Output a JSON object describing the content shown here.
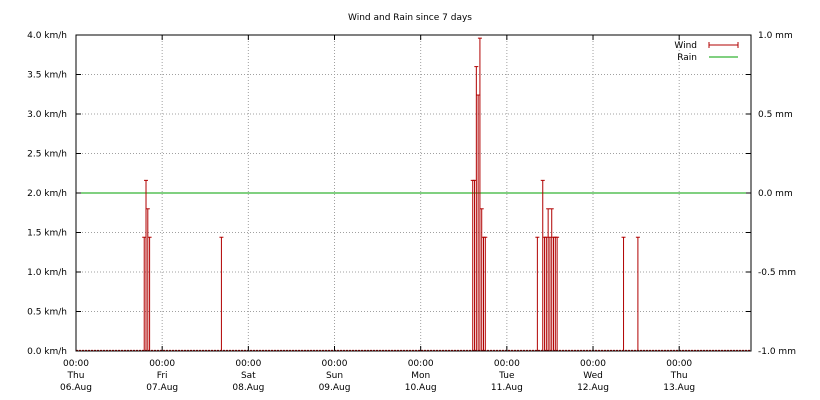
{
  "chart_data": {
    "type": "bar",
    "title": "Wind and Rain since 7 days",
    "y_left": {
      "range": [
        0.0,
        4.0
      ],
      "ticks": [
        0.0,
        0.5,
        1.0,
        1.5,
        2.0,
        2.5,
        3.0,
        3.5,
        4.0
      ],
      "tick_labels": [
        "0.0 km/h",
        "0.5 km/h",
        "1.0 km/h",
        "1.5 km/h",
        "2.0 km/h",
        "2.5 km/h",
        "3.0 km/h",
        "3.5 km/h",
        "4.0 km/h"
      ]
    },
    "y_right": {
      "range": [
        -1.0,
        1.0
      ],
      "ticks": [
        -1.0,
        -0.5,
        0.0,
        0.5,
        1.0
      ],
      "tick_labels": [
        "-1.0 mm",
        "-0.5 mm",
        "0.0 mm",
        "0.5 mm",
        "1.0 mm"
      ]
    },
    "x_axis": {
      "range": [
        "2020-08-06 00:00",
        "2020-08-13 20:00"
      ],
      "ticks": [
        {
          "value": "2020-08-06 00:00",
          "lines": [
            "00:00",
            "Thu",
            "06.Aug"
          ]
        },
        {
          "value": "2020-08-07 00:00",
          "lines": [
            "00:00",
            "Fri",
            "07.Aug"
          ]
        },
        {
          "value": "2020-08-08 00:00",
          "lines": [
            "00:00",
            "Sat",
            "08.Aug"
          ]
        },
        {
          "value": "2020-08-09 00:00",
          "lines": [
            "00:00",
            "Sun",
            "09.Aug"
          ]
        },
        {
          "value": "2020-08-10 00:00",
          "lines": [
            "00:00",
            "Mon",
            "10.Aug"
          ]
        },
        {
          "value": "2020-08-11 00:00",
          "lines": [
            "00:00",
            "Tue",
            "11.Aug"
          ]
        },
        {
          "value": "2020-08-12 00:00",
          "lines": [
            "00:00",
            "Wed",
            "12.Aug"
          ]
        },
        {
          "value": "2020-08-13 00:00",
          "lines": [
            "00:00",
            "Thu",
            "13.Aug"
          ]
        }
      ]
    },
    "grid": true,
    "legend_placement": "top-right",
    "series": [
      {
        "name": "Wind",
        "axis": "left",
        "style": "impulses",
        "color": "#b00000",
        "points": [
          {
            "x": "2020-08-06 19:00",
            "y": 1.44
          },
          {
            "x": "2020-08-06 19:30",
            "y": 2.16
          },
          {
            "x": "2020-08-06 20:00",
            "y": 1.8
          },
          {
            "x": "2020-08-06 20:30",
            "y": 1.44
          },
          {
            "x": "2020-08-07 16:30",
            "y": 1.44
          },
          {
            "x": "2020-08-10 14:30",
            "y": 2.16
          },
          {
            "x": "2020-08-10 15:00",
            "y": 2.16
          },
          {
            "x": "2020-08-10 15:30",
            "y": 3.6
          },
          {
            "x": "2020-08-10 16:00",
            "y": 3.24
          },
          {
            "x": "2020-08-10 16:30",
            "y": 3.96
          },
          {
            "x": "2020-08-10 17:00",
            "y": 1.8
          },
          {
            "x": "2020-08-10 17:30",
            "y": 1.44
          },
          {
            "x": "2020-08-10 18:00",
            "y": 1.44
          },
          {
            "x": "2020-08-11 08:30",
            "y": 1.44
          },
          {
            "x": "2020-08-11 10:00",
            "y": 2.16
          },
          {
            "x": "2020-08-11 10:30",
            "y": 1.44
          },
          {
            "x": "2020-08-11 11:00",
            "y": 1.44
          },
          {
            "x": "2020-08-11 11:30",
            "y": 1.8
          },
          {
            "x": "2020-08-11 12:00",
            "y": 1.44
          },
          {
            "x": "2020-08-11 12:30",
            "y": 1.8
          },
          {
            "x": "2020-08-11 13:00",
            "y": 1.44
          },
          {
            "x": "2020-08-11 13:30",
            "y": 1.44
          },
          {
            "x": "2020-08-11 14:00",
            "y": 1.44
          },
          {
            "x": "2020-08-12 08:30",
            "y": 1.44
          },
          {
            "x": "2020-08-12 12:30",
            "y": 1.44
          }
        ]
      },
      {
        "name": "Rain",
        "axis": "right",
        "style": "line",
        "color": "#00a000",
        "points": [
          {
            "x": "2020-08-06 00:00",
            "y": 0.0
          },
          {
            "x": "2020-08-13 20:00",
            "y": 0.0
          }
        ]
      }
    ]
  }
}
